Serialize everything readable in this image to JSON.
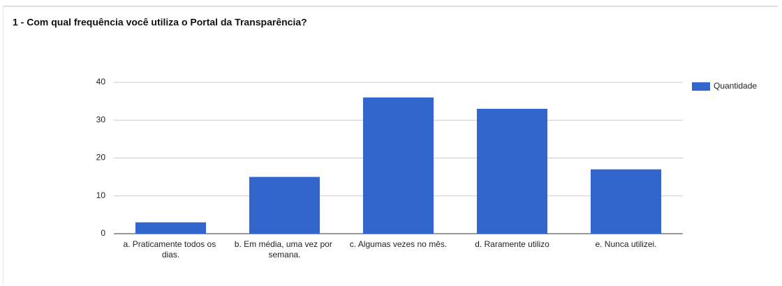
{
  "chart_data": {
    "type": "bar",
    "title": "1 - Com qual frequência você utiliza o Portal da Transparência?",
    "categories": [
      "a. Praticamente todos os dias.",
      "b. Em média, uma vez por semana.",
      "c. Algumas vezes no mês.",
      "d. Raramente utilizo",
      "e. Nunca utilizei."
    ],
    "series": [
      {
        "name": "Quantidade",
        "color": "#3366cc",
        "values": [
          3,
          15,
          36,
          33,
          17
        ]
      }
    ],
    "ylim": [
      0,
      40
    ],
    "yticks": [
      0,
      10,
      20,
      30,
      40
    ],
    "grid": true,
    "legend": "right"
  }
}
